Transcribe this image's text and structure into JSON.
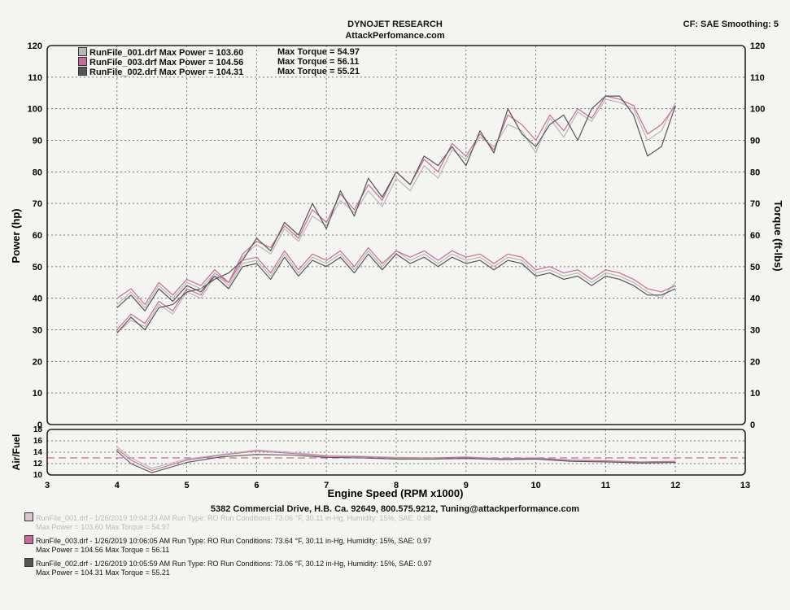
{
  "header": {
    "title": "DYNOJET RESEARCH",
    "subtitle": "AttackPerfomance.com",
    "cf_smoothing": "CF: SAE  Smoothing: 5"
  },
  "legend": [
    {
      "file": "RunFile_001.drf",
      "power_text": "Max Power = 103.60",
      "torque_text": "Max Torque = 54.97",
      "color": "#b7b7b7"
    },
    {
      "file": "RunFile_003.drf",
      "power_text": "Max Power = 104.56",
      "torque_text": "Max Torque = 56.11",
      "color": "#c76b9b"
    },
    {
      "file": "RunFile_002.drf",
      "power_text": "Max Power = 104.31",
      "torque_text": "Max Torque = 55.21",
      "color": "#555555"
    }
  ],
  "footer": {
    "address": "5382 Commercial Drive, H.B. Ca. 92649, 800.575.9212, Tuning@attackperformance.com",
    "runs": [
      {
        "line1": "RunFile_001.drf - 1/26/2019 10:04:23 AM  Run Type: RO  Run Conditions: 73.06 °F, 30.11 in-Hg,  Humidity:  15%, SAE: 0.98",
        "line2": "Max Power = 103.60  Max Torque = 54.97",
        "faded": true,
        "color": "#d9c6cf"
      },
      {
        "line1": "RunFile_003.drf - 1/26/2019 10:06:05 AM  Run Type: RO  Run Conditions: 73.64 °F, 30.11 in-Hg,  Humidity:  15%, SAE: 0.97",
        "line2": "Max Power = 104.56  Max Torque = 56.11",
        "faded": false,
        "color": "#c76b9b"
      },
      {
        "line1": "RunFile_002.drf - 1/26/2019 10:05:59 AM  Run Type: RO  Run Conditions: 73.06 °F, 30.12 in-Hg,  Humidity:  15%, SAE: 0.97",
        "line2": "Max Power = 104.31  Max Torque = 55.21",
        "faded": false,
        "color": "#555555"
      }
    ]
  },
  "chart_data": {
    "type": "line",
    "xlabel": "Engine Speed (RPM x1000)",
    "ylabel_left": "Power (hp)",
    "ylabel_right": "Torque (ft-lbs)",
    "xlim": [
      3,
      13
    ],
    "ylim": [
      0,
      120
    ],
    "x_ticks": [
      3,
      4,
      5,
      6,
      7,
      8,
      9,
      10,
      11,
      12,
      13
    ],
    "y_ticks": [
      0,
      10,
      20,
      30,
      40,
      50,
      60,
      70,
      80,
      90,
      100,
      110,
      120
    ],
    "grid": true,
    "afr": {
      "ylabel": "Air/Fuel",
      "ylim": [
        10,
        18
      ],
      "y_ticks": [
        10,
        12,
        14,
        16,
        18
      ],
      "target": 13,
      "series": [
        {
          "name": "RunFile_001.drf",
          "color": "#b7b7b7",
          "x": [
            4.0,
            4.2,
            4.5,
            5.0,
            5.5,
            6.0,
            6.5,
            7.0,
            7.5,
            8.0,
            8.5,
            9.0,
            9.5,
            10.0,
            10.5,
            11.0,
            11.5,
            12.0
          ],
          "y": [
            15.0,
            13.0,
            11.2,
            12.8,
            13.6,
            14.4,
            14.0,
            13.4,
            13.3,
            13.1,
            13.0,
            13.2,
            12.8,
            12.9,
            12.6,
            12.4,
            12.2,
            12.3
          ]
        },
        {
          "name": "RunFile_003.drf",
          "color": "#c76b9b",
          "x": [
            4.0,
            4.2,
            4.5,
            5.0,
            5.5,
            6.0,
            6.5,
            7.0,
            7.5,
            8.0,
            8.5,
            9.0,
            9.5,
            10.0,
            10.5,
            11.0,
            11.5,
            12.0
          ],
          "y": [
            14.6,
            12.6,
            10.8,
            12.6,
            13.5,
            14.2,
            13.8,
            13.3,
            13.2,
            13.0,
            13.0,
            13.1,
            12.9,
            13.0,
            12.6,
            12.5,
            12.3,
            12.4
          ]
        },
        {
          "name": "RunFile_002.drf",
          "color": "#555555",
          "x": [
            4.0,
            4.2,
            4.5,
            5.0,
            5.5,
            6.0,
            6.5,
            7.0,
            7.5,
            8.0,
            8.5,
            9.0,
            9.5,
            10.0,
            10.5,
            11.0,
            11.5,
            12.0
          ],
          "y": [
            14.2,
            12.0,
            10.4,
            12.2,
            13.2,
            13.6,
            13.5,
            13.1,
            13.0,
            12.8,
            12.8,
            12.9,
            12.7,
            12.8,
            12.4,
            12.3,
            12.1,
            12.2
          ]
        }
      ]
    },
    "series": [
      {
        "name": "RunFile_001.drf",
        "kind": "power",
        "color": "#b7b7b7",
        "x": [
          4.0,
          4.2,
          4.4,
          4.6,
          4.8,
          5.0,
          5.2,
          5.4,
          5.6,
          5.8,
          6.0,
          6.2,
          6.4,
          6.6,
          6.8,
          7.0,
          7.2,
          7.4,
          7.6,
          7.8,
          8.0,
          8.2,
          8.4,
          8.6,
          8.8,
          9.0,
          9.2,
          9.4,
          9.6,
          9.8,
          10.0,
          10.2,
          10.4,
          10.6,
          10.8,
          11.0,
          11.2,
          11.4,
          11.6,
          11.8,
          12.0
        ],
        "y": [
          29,
          33,
          31,
          38,
          35,
          42,
          40,
          47,
          45,
          53,
          57,
          54,
          62,
          58,
          66,
          63,
          71,
          67,
          74,
          69,
          78,
          74,
          82,
          78,
          87,
          84,
          91,
          88,
          95,
          93,
          86,
          97,
          91,
          99,
          96,
          103,
          102,
          100,
          90,
          93,
          102
        ]
      },
      {
        "name": "RunFile_003.drf",
        "kind": "power",
        "color": "#c76b9b",
        "x": [
          4.0,
          4.2,
          4.4,
          4.6,
          4.8,
          5.0,
          5.2,
          5.4,
          5.6,
          5.8,
          6.0,
          6.2,
          6.4,
          6.6,
          6.8,
          7.0,
          7.2,
          7.4,
          7.6,
          7.8,
          8.0,
          8.2,
          8.4,
          8.6,
          8.8,
          9.0,
          9.2,
          9.4,
          9.6,
          9.8,
          10.0,
          10.2,
          10.4,
          10.6,
          10.8,
          11.0,
          11.2,
          11.4,
          11.6,
          11.8,
          12.0
        ],
        "y": [
          30,
          35,
          32,
          39,
          36,
          43,
          41,
          48,
          45,
          54,
          58,
          56,
          63,
          59,
          68,
          64,
          73,
          68,
          76,
          71,
          80,
          76,
          84,
          80,
          89,
          85,
          92,
          87,
          98,
          95,
          90,
          98,
          93,
          100,
          97,
          104,
          103,
          101,
          92,
          95,
          101
        ]
      },
      {
        "name": "RunFile_002.drf",
        "kind": "power",
        "color": "#555555",
        "x": [
          4.0,
          4.2,
          4.4,
          4.6,
          4.8,
          5.0,
          5.2,
          5.4,
          5.6,
          5.8,
          6.0,
          6.2,
          6.4,
          6.6,
          6.8,
          7.0,
          7.2,
          7.4,
          7.6,
          7.8,
          8.0,
          8.2,
          8.4,
          8.6,
          8.8,
          9.0,
          9.2,
          9.4,
          9.6,
          9.8,
          10.0,
          10.2,
          10.4,
          10.6,
          10.8,
          11.0,
          11.2,
          11.4,
          11.6,
          11.8,
          12.0
        ],
        "y": [
          29,
          34,
          30,
          37,
          38,
          42,
          43,
          46,
          48,
          52,
          59,
          55,
          64,
          60,
          70,
          62,
          74,
          66,
          78,
          72,
          80,
          76,
          85,
          82,
          88,
          82,
          93,
          86,
          100,
          92,
          88,
          95,
          98,
          90,
          100,
          104,
          104,
          98,
          85,
          88,
          101
        ]
      },
      {
        "name": "RunFile_001.drf",
        "kind": "torque",
        "color": "#b7b7b7",
        "x": [
          4.0,
          4.2,
          4.4,
          4.6,
          4.8,
          5.0,
          5.2,
          5.4,
          5.6,
          5.8,
          6.0,
          6.2,
          6.4,
          6.6,
          6.8,
          7.0,
          7.2,
          7.4,
          7.6,
          7.8,
          8.0,
          8.2,
          8.4,
          8.6,
          8.8,
          9.0,
          9.2,
          9.4,
          9.6,
          9.8,
          10.0,
          10.2,
          10.4,
          10.6,
          10.8,
          11.0,
          11.2,
          11.4,
          11.6,
          11.8,
          12.0
        ],
        "y": [
          38,
          42,
          37,
          44,
          40,
          45,
          43,
          48,
          44,
          51,
          52,
          47,
          54,
          48,
          53,
          51,
          54,
          49,
          55,
          50,
          55,
          52,
          54,
          51,
          54,
          52,
          53,
          50,
          53,
          52,
          48,
          49,
          47,
          48,
          45,
          48,
          47,
          45,
          42,
          40,
          45
        ]
      },
      {
        "name": "RunFile_003.drf",
        "kind": "torque",
        "color": "#c76b9b",
        "x": [
          4.0,
          4.2,
          4.4,
          4.6,
          4.8,
          5.0,
          5.2,
          5.4,
          5.6,
          5.8,
          6.0,
          6.2,
          6.4,
          6.6,
          6.8,
          7.0,
          7.2,
          7.4,
          7.6,
          7.8,
          8.0,
          8.2,
          8.4,
          8.6,
          8.8,
          9.0,
          9.2,
          9.4,
          9.6,
          9.8,
          10.0,
          10.2,
          10.4,
          10.6,
          10.8,
          11.0,
          11.2,
          11.4,
          11.6,
          11.8,
          12.0
        ],
        "y": [
          40,
          43,
          38,
          45,
          41,
          46,
          44,
          49,
          45,
          52,
          53,
          48,
          55,
          49,
          54,
          52,
          55,
          50,
          56,
          51,
          55,
          53,
          55,
          52,
          55,
          53,
          54,
          51,
          54,
          53,
          49,
          50,
          48,
          49,
          46,
          49,
          48,
          46,
          43,
          42,
          44
        ]
      },
      {
        "name": "RunFile_002.drf",
        "kind": "torque",
        "color": "#555555",
        "x": [
          4.0,
          4.2,
          4.4,
          4.6,
          4.8,
          5.0,
          5.2,
          5.4,
          5.6,
          5.8,
          6.0,
          6.2,
          6.4,
          6.6,
          6.8,
          7.0,
          7.2,
          7.4,
          7.6,
          7.8,
          8.0,
          8.2,
          8.4,
          8.6,
          8.8,
          9.0,
          9.2,
          9.4,
          9.6,
          9.8,
          10.0,
          10.2,
          10.4,
          10.6,
          10.8,
          11.0,
          11.2,
          11.4,
          11.6,
          11.8,
          12.0
        ],
        "y": [
          37,
          41,
          36,
          43,
          39,
          44,
          42,
          47,
          43,
          50,
          51,
          46,
          53,
          47,
          52,
          50,
          53,
          48,
          54,
          49,
          54,
          51,
          53,
          50,
          53,
          51,
          52,
          49,
          52,
          51,
          47,
          48,
          46,
          47,
          44,
          47,
          46,
          44,
          41,
          41,
          43
        ]
      }
    ]
  }
}
